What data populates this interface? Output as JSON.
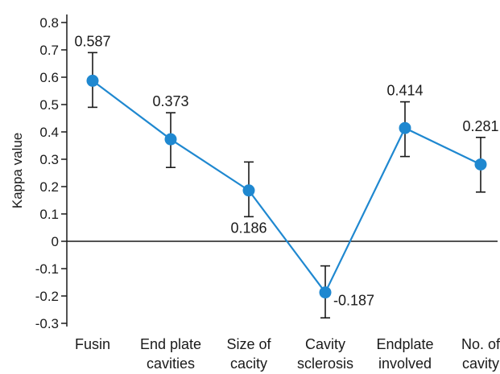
{
  "chart_data": {
    "type": "line",
    "title": "",
    "xlabel": "",
    "ylabel": "Kappa value",
    "ylim": [
      -0.3,
      0.8
    ],
    "yticks": [
      0.8,
      0.7,
      0.6,
      0.5,
      0.4,
      0.3,
      0.2,
      0.1,
      0,
      -0.1,
      -0.2,
      -0.3
    ],
    "ytick_labels": [
      "0.8",
      "0.7",
      "0.6",
      "0.5",
      "0.4",
      "0.3",
      "0.2",
      "0.1",
      "0",
      "-0.1",
      "-0.2",
      "-0.3"
    ],
    "categories": [
      [
        "Fusin",
        ""
      ],
      [
        "End plate",
        "cavities"
      ],
      [
        "Size of",
        "cacity"
      ],
      [
        "Cavity",
        "sclerosis"
      ],
      [
        "Endplate",
        "involved"
      ],
      [
        "No. of",
        "cavity"
      ]
    ],
    "series": [
      {
        "values": [
          0.587,
          0.373,
          0.186,
          -0.187,
          0.414,
          0.281
        ],
        "labels": [
          "0.587",
          "0.373",
          "0.186",
          "-0.187",
          "0.414",
          "0.281"
        ],
        "error_low": [
          0.49,
          0.27,
          0.09,
          -0.28,
          0.31,
          0.18
        ],
        "error_high": [
          0.69,
          0.47,
          0.29,
          -0.09,
          0.51,
          0.38
        ],
        "color": "#1f88d0"
      }
    ],
    "grid": false,
    "legend": "none",
    "axis_color": "#1a1a1a",
    "errorbar_color": "#1a1a1a"
  }
}
